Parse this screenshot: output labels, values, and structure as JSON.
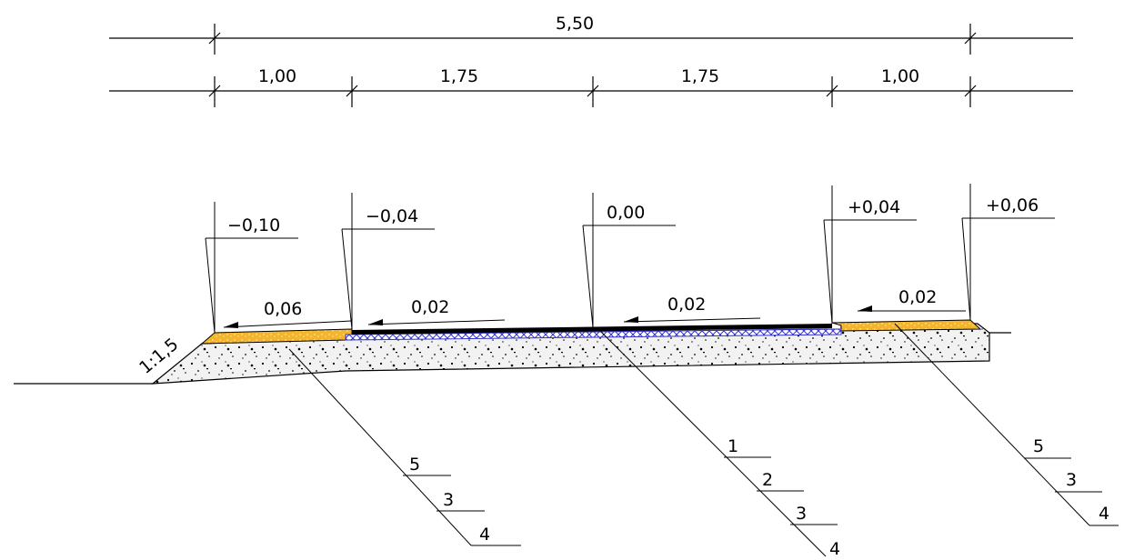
{
  "dimensions": {
    "total": "5,50",
    "segments": [
      "1,00",
      "1,75",
      "1,75",
      "1,00"
    ]
  },
  "elevations": [
    "−0,10",
    "−0,04",
    "0,00",
    "+0,04",
    "+0,06"
  ],
  "slopes": [
    "0,06",
    "0,02",
    "0,02",
    "0,02"
  ],
  "embankment_slope": "1:1,5",
  "callouts": {
    "left": [
      "5",
      "3",
      "4"
    ],
    "middle": [
      "1",
      "2",
      "3",
      "4"
    ],
    "right": [
      "5",
      "3",
      "4"
    ]
  },
  "colors": {
    "line": "#000000",
    "shoulder_fill": "#f5b52a",
    "base_fill": "#f2f2f2",
    "asphalt": "#000000",
    "geogrid": "#3333cc"
  }
}
